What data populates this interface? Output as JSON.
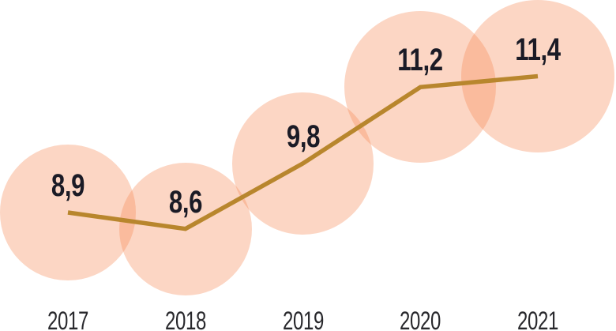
{
  "chart_data": {
    "type": "line",
    "subtype": "bubble-line",
    "title": "",
    "xlabel": "",
    "ylabel": "",
    "grid": false,
    "legend": false,
    "categories": [
      "2017",
      "2018",
      "2019",
      "2020",
      "2021"
    ],
    "values": [
      8.9,
      8.6,
      9.8,
      11.2,
      11.4
    ],
    "point_labels": [
      "8,9",
      "8,6",
      "9,8",
      "11,2",
      "11,4"
    ],
    "decimal_separator": ",",
    "bubble_size": "proportional-to-value-area",
    "colors": {
      "bubble_fill": "#f68a56",
      "bubble_opacity": 0.35,
      "line": "#b8862d",
      "value_label": "#1b1b26",
      "axis_label": "#28282c",
      "background": "#ffffff"
    }
  }
}
